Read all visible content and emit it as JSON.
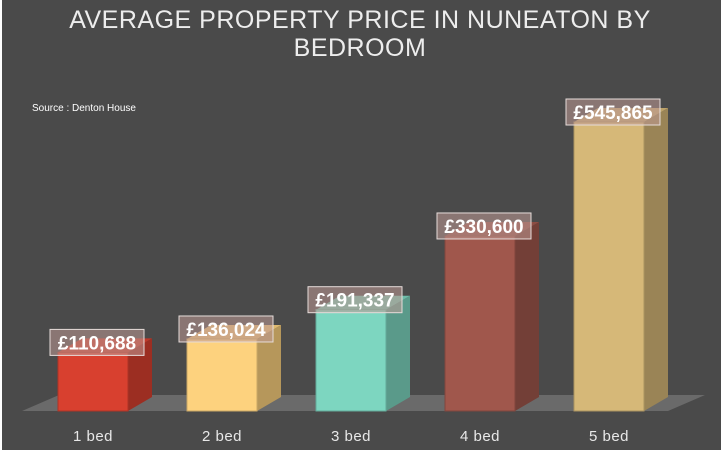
{
  "chart_data": {
    "type": "bar",
    "title_lines": [
      "AVERAGE PROPERTY PRICE IN NUNEATON BY",
      "BEDROOM"
    ],
    "source": "Source : Denton House",
    "categories": [
      "1 bed",
      "2 bed",
      "3 bed",
      "4 bed",
      "5 bed"
    ],
    "values": [
      110688,
      136024,
      191337,
      330600,
      545865
    ],
    "data_labels": [
      "£110,688",
      "£136,024",
      "£191,337",
      "£330,600",
      "£545,865"
    ],
    "currency": "£",
    "xlabel": "",
    "ylabel": "",
    "ylim": [
      0,
      545865
    ],
    "grid": false,
    "legend": "none",
    "bar_colors": [
      "#d8402f",
      "#fdd27e",
      "#7dd6c0",
      "#a0574c",
      "#d6b878"
    ]
  }
}
